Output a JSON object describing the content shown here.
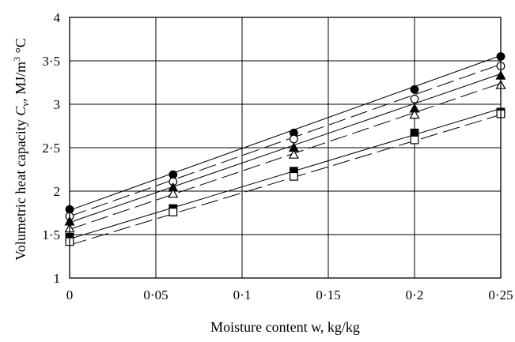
{
  "chart_data": {
    "type": "scatter",
    "title": "",
    "xlabel": "Moisture content w, kg/kg",
    "ylabel": "Volumetric heat capacity C_v, MJ/m³ °C",
    "ylabel_parts": {
      "prefix": "Volumetric heat capacity ",
      "symbol": "C",
      "subscript": "v",
      "units": ", MJ/m",
      "units_sup": "3",
      "units_tail": " °C"
    },
    "xlim": [
      0,
      0.25
    ],
    "ylim": [
      1,
      4
    ],
    "x_ticks": [
      0,
      0.05,
      0.1,
      0.15,
      0.2,
      0.25
    ],
    "x_tick_labels": [
      "0",
      "0·05",
      "0·1",
      "0·15",
      "0·2",
      "0·25"
    ],
    "y_ticks": [
      1,
      1.5,
      2,
      2.5,
      3,
      3.5,
      4
    ],
    "y_tick_labels": [
      "1",
      "1·5",
      "2",
      "2·5",
      "3",
      "3·5",
      "4"
    ],
    "grid": true,
    "x": [
      0,
      0.06,
      0.13,
      0.2,
      0.25
    ],
    "series": [
      {
        "marker": "filled-circle",
        "line": "solid",
        "values": [
          1.79,
          2.19,
          2.67,
          3.17,
          3.55
        ],
        "fit": [
          1.78,
          3.56
        ]
      },
      {
        "marker": "open-circle",
        "line": "dashed",
        "values": [
          1.71,
          2.11,
          2.6,
          3.06,
          3.44
        ],
        "fit": [
          1.71,
          3.46
        ]
      },
      {
        "marker": "filled-triangle",
        "line": "solid",
        "values": [
          1.65,
          2.04,
          2.5,
          2.95,
          3.33
        ],
        "fit": [
          1.64,
          3.35
        ]
      },
      {
        "marker": "open-triangle",
        "line": "dashed",
        "values": [
          1.57,
          1.97,
          2.42,
          2.88,
          3.22
        ],
        "fit": [
          1.56,
          3.24
        ]
      },
      {
        "marker": "filled-square",
        "line": "solid",
        "values": [
          1.47,
          1.8,
          2.23,
          2.67,
          2.91
        ],
        "fit": [
          1.45,
          2.95
        ]
      },
      {
        "marker": "open-square",
        "line": "dashed",
        "values": [
          1.42,
          1.76,
          2.17,
          2.59,
          2.89
        ],
        "fit": [
          1.38,
          2.88
        ]
      }
    ]
  }
}
